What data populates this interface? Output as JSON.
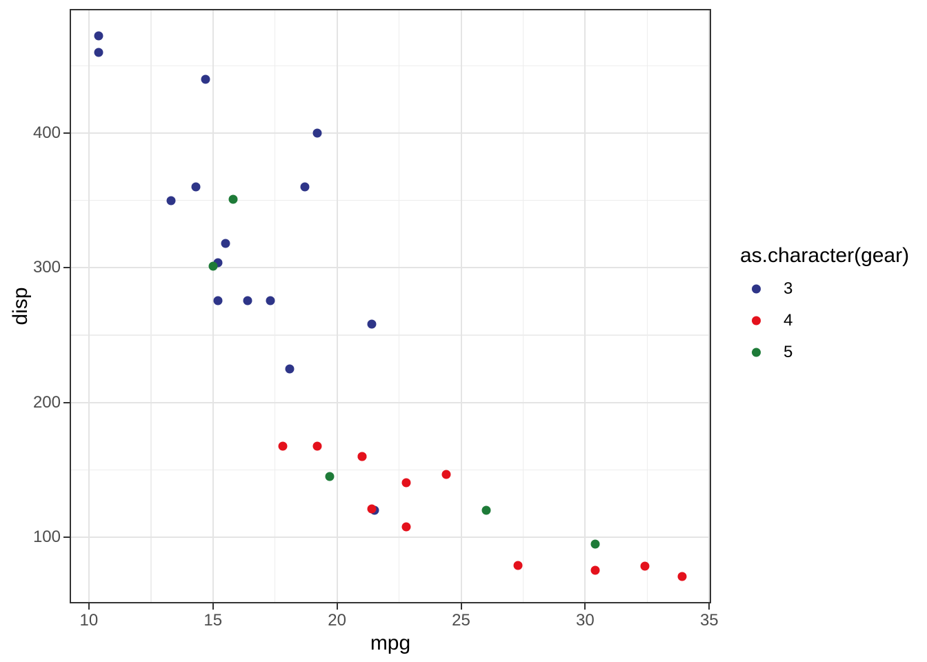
{
  "chart_data": {
    "type": "scatter",
    "title": "",
    "xlabel": "mpg",
    "ylabel": "disp",
    "xlim": [
      9.225,
      35.075
    ],
    "ylim": [
      51.0,
      492.1
    ],
    "x_ticks": [
      10,
      15,
      20,
      25,
      30,
      35
    ],
    "y_ticks": [
      100,
      200,
      300,
      400
    ],
    "x_minor": [
      12.5,
      17.5,
      22.5,
      27.5,
      32.5
    ],
    "y_minor": [
      150,
      250,
      350,
      450
    ],
    "grid": true,
    "legend": {
      "title": "as.character(gear)",
      "position": "right",
      "entries": [
        {
          "label": "3",
          "color": "#2E3588"
        },
        {
          "label": "4",
          "color": "#E4111C"
        },
        {
          "label": "5",
          "color": "#1E7B38"
        }
      ]
    },
    "series": [
      {
        "name": "3",
        "color": "#2E3588",
        "points": [
          [
            21.4,
            258.0
          ],
          [
            18.7,
            360.0
          ],
          [
            18.1,
            225.0
          ],
          [
            14.3,
            360.0
          ],
          [
            16.4,
            275.8
          ],
          [
            17.3,
            275.8
          ],
          [
            15.2,
            275.8
          ],
          [
            10.4,
            472.0
          ],
          [
            10.4,
            460.0
          ],
          [
            14.7,
            440.0
          ],
          [
            21.5,
            120.1
          ],
          [
            15.5,
            318.0
          ],
          [
            15.2,
            304.0
          ],
          [
            13.3,
            350.0
          ],
          [
            19.2,
            400.0
          ]
        ]
      },
      {
        "name": "4",
        "color": "#E4111C",
        "points": [
          [
            21.0,
            160.0
          ],
          [
            21.0,
            160.0
          ],
          [
            22.8,
            108.0
          ],
          [
            24.4,
            146.7
          ],
          [
            22.8,
            140.8
          ],
          [
            19.2,
            167.6
          ],
          [
            17.8,
            167.6
          ],
          [
            32.4,
            78.7
          ],
          [
            30.4,
            75.7
          ],
          [
            33.9,
            71.1
          ],
          [
            27.3,
            79.0
          ],
          [
            21.4,
            121.0
          ]
        ]
      },
      {
        "name": "5",
        "color": "#1E7B38",
        "points": [
          [
            26.0,
            120.3
          ],
          [
            30.4,
            95.1
          ],
          [
            15.8,
            351.0
          ],
          [
            19.7,
            145.0
          ],
          [
            15.0,
            301.0
          ]
        ]
      }
    ]
  }
}
